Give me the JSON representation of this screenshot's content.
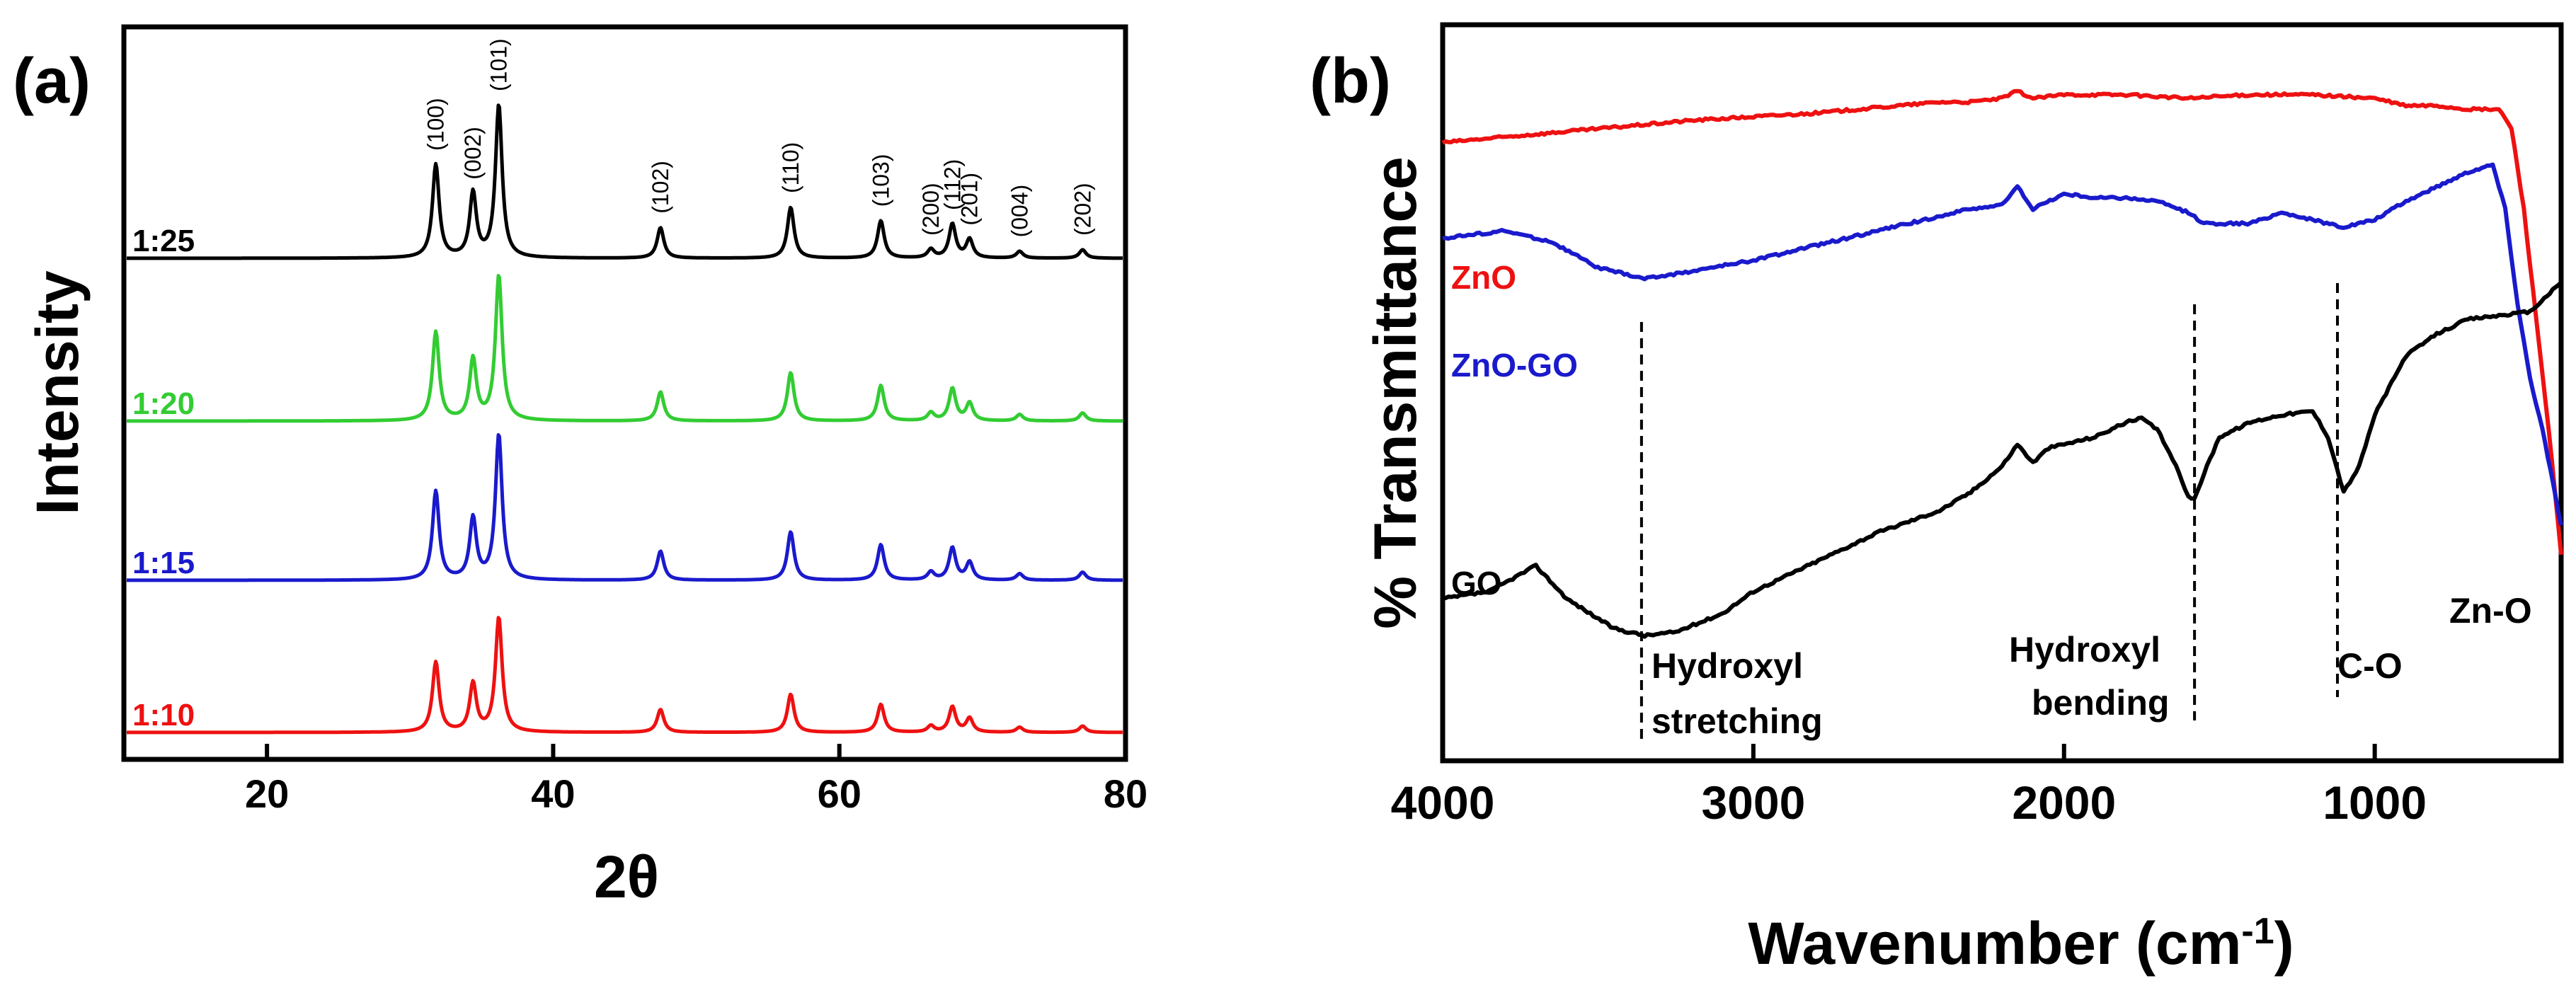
{
  "chart_data": [
    {
      "panel": "(a)",
      "type": "line",
      "xlabel": "2θ",
      "ylabel": "Intensity",
      "xlim": [
        10,
        80
      ],
      "xticks": [
        20,
        40,
        60,
        80
      ],
      "peaks": [
        {
          "hkl": "(100)",
          "x": 31.8,
          "h": 0.55
        },
        {
          "hkl": "(002)",
          "x": 34.4,
          "h": 0.38
        },
        {
          "hkl": "(101)",
          "x": 36.2,
          "h": 0.9
        },
        {
          "hkl": "(102)",
          "x": 47.5,
          "h": 0.18
        },
        {
          "hkl": "(110)",
          "x": 56.6,
          "h": 0.3
        },
        {
          "hkl": "(103)",
          "x": 62.9,
          "h": 0.22
        },
        {
          "hkl": "(200)",
          "x": 66.4,
          "h": 0.05
        },
        {
          "hkl": "(112)",
          "x": 67.9,
          "h": 0.2
        },
        {
          "hkl": "(201)",
          "x": 69.1,
          "h": 0.11
        },
        {
          "hkl": "(004)",
          "x": 72.6,
          "h": 0.04
        },
        {
          "hkl": "(202)",
          "x": 77.0,
          "h": 0.05
        }
      ],
      "series": [
        {
          "name": "1:25",
          "color": "#000000",
          "scale": 1.0
        },
        {
          "name": "1:20",
          "color": "#33cc33",
          "scale": 0.95
        },
        {
          "name": "1:15",
          "color": "#1a1acc",
          "scale": 0.95
        },
        {
          "name": "1:10",
          "color": "#ee1111",
          "scale": 0.75
        }
      ]
    },
    {
      "panel": "(b)",
      "type": "line",
      "xlabel": "Wavenumber (cm",
      "xlabel_sup": "-1",
      "xlabel_close": ")",
      "ylabel": "% Transmittance",
      "xlim": [
        4000,
        400
      ],
      "ylim": [
        0,
        100
      ],
      "xticks": [
        4000,
        3000,
        2000,
        1000
      ],
      "series": [
        {
          "name": "ZnO",
          "color": "#ee1111",
          "x": [
            4000,
            3600,
            3200,
            2800,
            2400,
            2300,
            2200,
            2150,
            2100,
            2000,
            1800,
            1600,
            1400,
            1200,
            1000,
            900,
            800,
            700,
            600,
            560,
            520,
            480,
            440,
            400
          ],
          "y": [
            84.0,
            85.5,
            87.0,
            88.0,
            89.5,
            89.5,
            90.0,
            91.0,
            90.0,
            90.5,
            90.5,
            90.0,
            90.5,
            90.5,
            90.0,
            89.0,
            89.0,
            88.5,
            88.5,
            86.0,
            75.0,
            60.0,
            45.0,
            28.0
          ]
        },
        {
          "name": "ZnO-GO",
          "color": "#1a1acc",
          "x": [
            4000,
            3800,
            3650,
            3500,
            3350,
            3200,
            3000,
            2800,
            2500,
            2300,
            2200,
            2150,
            2100,
            2000,
            1900,
            1800,
            1700,
            1600,
            1550,
            1500,
            1400,
            1300,
            1200,
            1100,
            1000,
            900,
            800,
            700,
            620,
            580,
            540,
            500,
            460,
            400
          ],
          "y": [
            71.0,
            72.0,
            70.5,
            67.0,
            65.5,
            66.5,
            68.0,
            70.0,
            73.0,
            75.0,
            75.5,
            78.0,
            75.0,
            77.0,
            76.5,
            76.5,
            76.0,
            74.5,
            73.0,
            73.0,
            73.0,
            74.5,
            73.5,
            72.5,
            73.5,
            76.0,
            78.0,
            80.0,
            81.0,
            75.0,
            62.0,
            52.0,
            45.0,
            32.0
          ]
        },
        {
          "name": "GO",
          "color": "#000000",
          "x": [
            4000,
            3850,
            3700,
            3600,
            3450,
            3350,
            3250,
            3100,
            3000,
            2800,
            2600,
            2400,
            2300,
            2200,
            2150,
            2100,
            2050,
            2000,
            1900,
            1800,
            1750,
            1700,
            1650,
            1600,
            1580,
            1550,
            1500,
            1400,
            1300,
            1200,
            1150,
            1100,
            1050,
            1000,
            900,
            800,
            700,
            600,
            500,
            400
          ],
          "y": [
            22.0,
            23.0,
            26.5,
            22.0,
            18.0,
            17.0,
            17.5,
            20.0,
            23.0,
            27.0,
            31.0,
            34.0,
            36.5,
            40.0,
            43.0,
            40.5,
            42.5,
            43.0,
            44.0,
            46.0,
            46.5,
            45.0,
            41.0,
            36.0,
            35.5,
            39.0,
            44.0,
            46.0,
            47.0,
            47.5,
            44.0,
            36.5,
            40.0,
            47.0,
            55.0,
            58.0,
            60.0,
            60.5,
            61.0,
            65.0
          ]
        }
      ],
      "markers": [
        3360,
        1580,
        1120
      ],
      "annotations": {
        "hydroxyl_stretching": [
          "Hydroxyl",
          "stretching"
        ],
        "hydroxyl_bending": [
          "Hydroxyl",
          "bending"
        ],
        "c_o": "C-O",
        "zn_o": "Zn-O"
      }
    }
  ]
}
